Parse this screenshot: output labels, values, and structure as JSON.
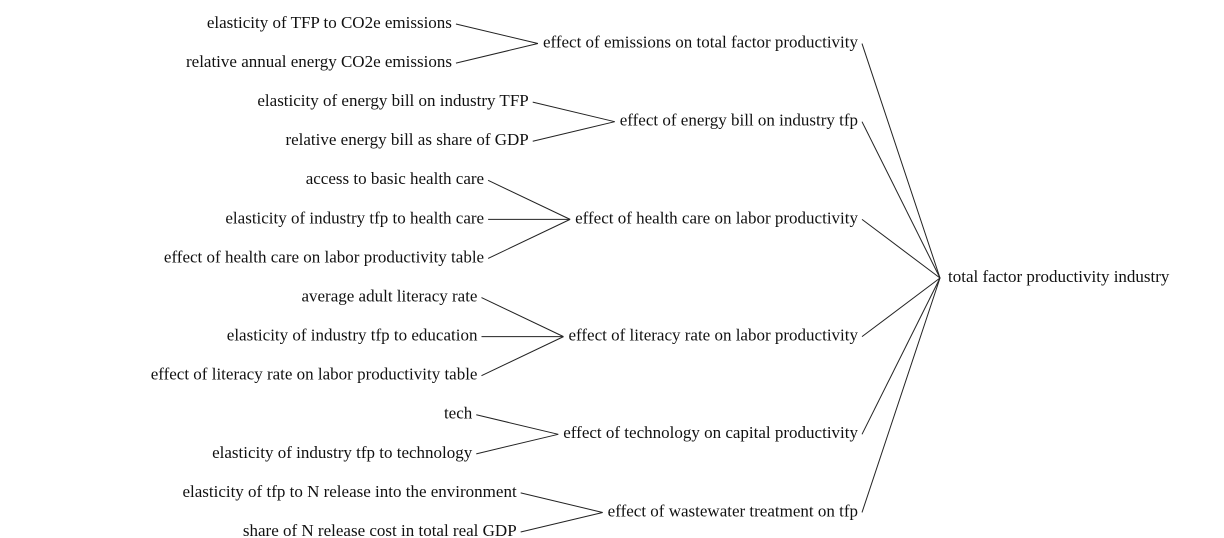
{
  "tree": {
    "root": "total factor productivity industry",
    "groups": [
      {
        "label": "effect of emissions on total factor productivity",
        "inputs": [
          "elasticity of TFP to CO2e emissions",
          "relative annual energy CO2e emissions"
        ]
      },
      {
        "label": "effect of energy bill on industry tfp",
        "inputs": [
          "elasticity of energy bill on industry TFP",
          "relative energy bill as share of GDP"
        ]
      },
      {
        "label": "effect of health care on labor productivity",
        "inputs": [
          "access to basic health care",
          "elasticity of industry tfp to health care",
          "effect of health care on labor productivity table"
        ]
      },
      {
        "label": "effect of literacy rate on labor productivity",
        "inputs": [
          "average adult literacy rate",
          "elasticity of industry tfp to education",
          "effect of literacy rate on labor productivity table"
        ]
      },
      {
        "label": "effect of technology on capital productivity",
        "inputs": [
          "tech",
          "elasticity of industry tfp to technology"
        ]
      },
      {
        "label": "effect of wastewater treatment on tfp",
        "inputs": [
          "elasticity of tfp to N release into the environment",
          "share of N release cost in total real GDP"
        ]
      }
    ]
  }
}
